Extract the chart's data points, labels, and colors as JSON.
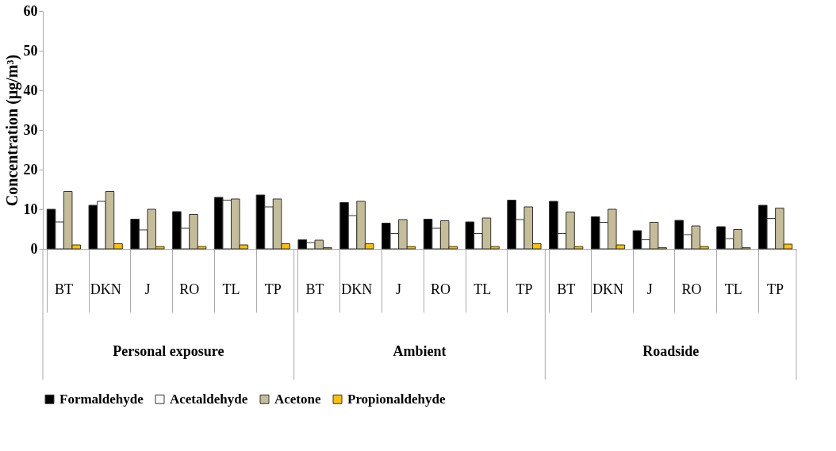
{
  "chart_data": {
    "type": "bar",
    "ylabel": "Concentration (µg/m³)",
    "categories": [
      "BT",
      "DKN",
      "J",
      "RO",
      "TL",
      "TP",
      "BT",
      "DKN",
      "J",
      "RO",
      "TL",
      "TP",
      "BT",
      "DKN",
      "J",
      "RO",
      "TL",
      "TP"
    ],
    "series": [
      {
        "name": "Formaldehyde",
        "color": "#000000",
        "values": [
          10,
          11,
          7.5,
          9.4,
          13,
          13.6,
          2.3,
          11.7,
          6.5,
          7.5,
          6.8,
          12.3,
          12,
          8.1,
          4.6,
          7.2,
          5.6,
          11
        ]
      },
      {
        "name": "Acetaldehyde",
        "color": "#ffffff",
        "values": [
          6.8,
          12,
          4.8,
          5.2,
          12.3,
          10.6,
          1.6,
          8.4,
          3.9,
          5.2,
          3.9,
          7.4,
          3.9,
          6.7,
          2.3,
          3.6,
          2.6,
          7.7
        ]
      },
      {
        "name": "Acetone",
        "color": "#c4bd97",
        "values": [
          14.5,
          14.5,
          10,
          8.7,
          12.6,
          12.6,
          2.2,
          12,
          7.4,
          7.1,
          7.8,
          10.6,
          9.3,
          10,
          6.7,
          5.8,
          4.9,
          10.3
        ]
      },
      {
        "name": "Propionaldehyde",
        "color": "#ffc000",
        "values": [
          1.0,
          1.3,
          0.6,
          0.6,
          1.0,
          1.3,
          0.3,
          1.3,
          0.6,
          0.6,
          0.6,
          1.3,
          0.6,
          1.0,
          0.3,
          0.6,
          0.3,
          1.2
        ]
      }
    ],
    "annotations": [
      "Personal exposure",
      "Ambient",
      "Roadside"
    ],
    "ylim": [
      0,
      60
    ],
    "yticks": [
      0,
      10,
      20,
      30,
      40,
      50,
      60
    ],
    "grid": false,
    "legend": "bottom"
  }
}
